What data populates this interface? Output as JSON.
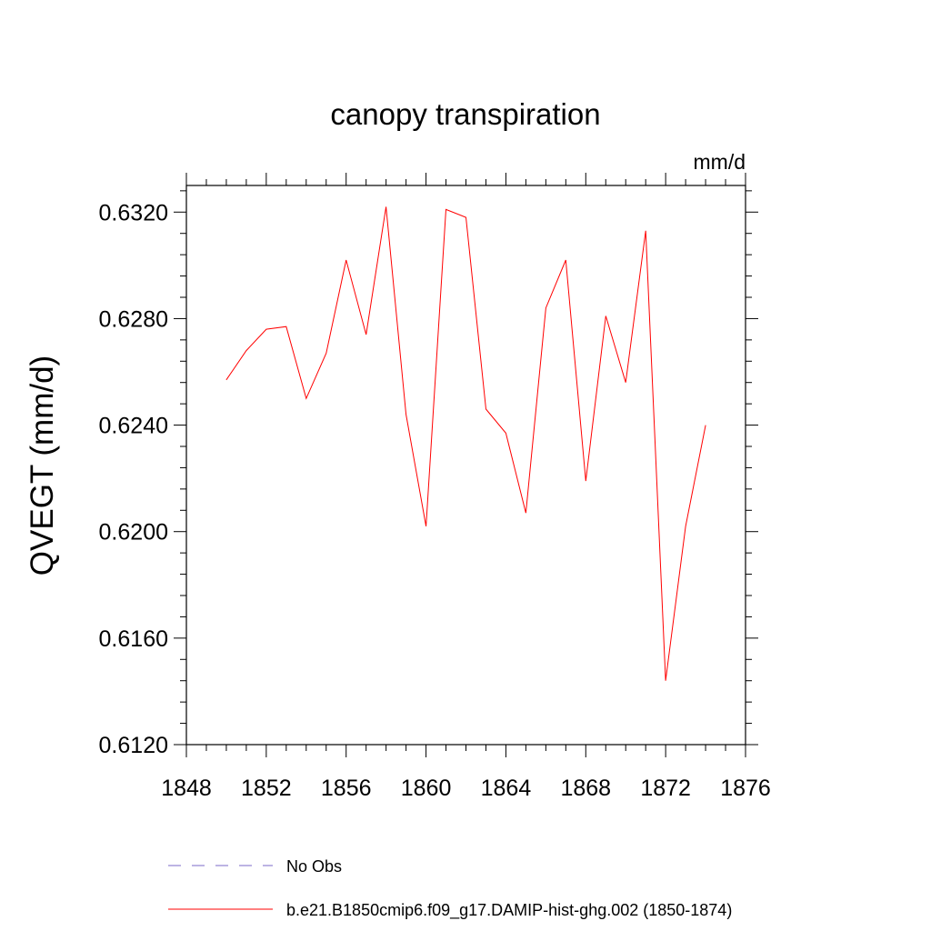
{
  "chart_data": {
    "type": "line",
    "title": "canopy transpiration",
    "units_label": "mm/d",
    "ylabel": "QVEGT  (mm/d)",
    "xlabel": "",
    "xlim": [
      1848,
      1876
    ],
    "ylim": [
      0.612,
      0.633
    ],
    "x_ticks": [
      1848,
      1852,
      1856,
      1860,
      1864,
      1868,
      1872,
      1876
    ],
    "x_tick_labels": [
      "1848",
      "1852",
      "1856",
      "1860",
      "1864",
      "1868",
      "1872",
      "1876"
    ],
    "y_ticks": [
      0.612,
      0.616,
      0.62,
      0.624,
      0.628,
      0.632
    ],
    "y_tick_labels": [
      "0.6120",
      "0.6160",
      "0.6200",
      "0.6240",
      "0.6280",
      "0.6320"
    ],
    "grid": false,
    "legend_placement": "bottom",
    "series": [
      {
        "name": "No Obs",
        "color": "#7b68c8",
        "dash": "dashed",
        "x": [],
        "values": []
      },
      {
        "name": "b.e21.B1850cmip6.f09_g17.DAMIP-hist-ghg.002 (1850-1874)",
        "color": "#ff0000",
        "dash": "solid",
        "x": [
          1850,
          1851,
          1852,
          1853,
          1854,
          1855,
          1856,
          1857,
          1858,
          1859,
          1860,
          1861,
          1862,
          1863,
          1864,
          1865,
          1866,
          1867,
          1868,
          1869,
          1870,
          1871,
          1872,
          1873,
          1874
        ],
        "values": [
          0.6257,
          0.6268,
          0.6276,
          0.6277,
          0.625,
          0.6267,
          0.6302,
          0.6274,
          0.6322,
          0.6244,
          0.6202,
          0.6321,
          0.6318,
          0.6246,
          0.6237,
          0.6207,
          0.6284,
          0.6302,
          0.6219,
          0.6281,
          0.6256,
          0.6313,
          0.6144,
          0.6202,
          0.624
        ]
      }
    ]
  }
}
